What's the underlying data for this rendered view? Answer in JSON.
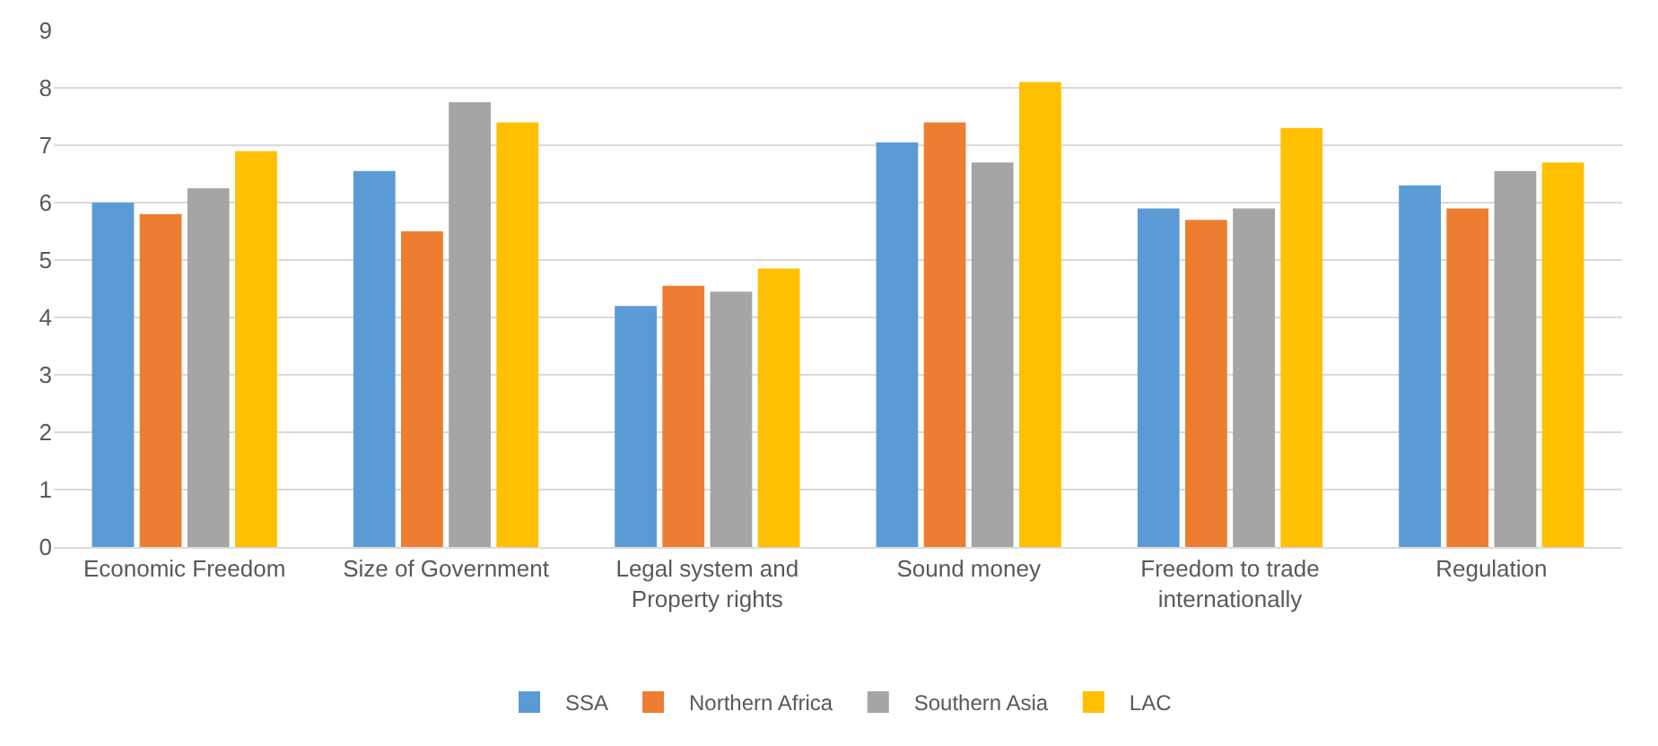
{
  "chart_data": {
    "type": "bar",
    "categories": [
      "Economic Freedom",
      "Size of Government",
      "Legal system and Property rights",
      "Sound money",
      "Freedom to trade internationally",
      "Regulation"
    ],
    "series": [
      {
        "name": "SSA",
        "color": "#5b9bd5",
        "values": [
          6.0,
          6.55,
          4.2,
          7.05,
          5.9,
          6.3
        ]
      },
      {
        "name": "Northern Africa",
        "color": "#ed7d31",
        "values": [
          5.8,
          5.5,
          4.55,
          7.4,
          5.7,
          5.9
        ]
      },
      {
        "name": "Southern Asia",
        "color": "#a5a5a5",
        "values": [
          6.25,
          7.75,
          4.45,
          6.7,
          5.9,
          6.55
        ]
      },
      {
        "name": "LAC",
        "color": "#ffc000",
        "values": [
          6.9,
          7.4,
          4.85,
          8.1,
          7.3,
          6.7
        ]
      }
    ],
    "ylim": [
      0,
      9
    ],
    "yticks": [
      0,
      1,
      2,
      3,
      4,
      5,
      6,
      7,
      8,
      9
    ],
    "grid": "y",
    "legend": "bottom"
  }
}
